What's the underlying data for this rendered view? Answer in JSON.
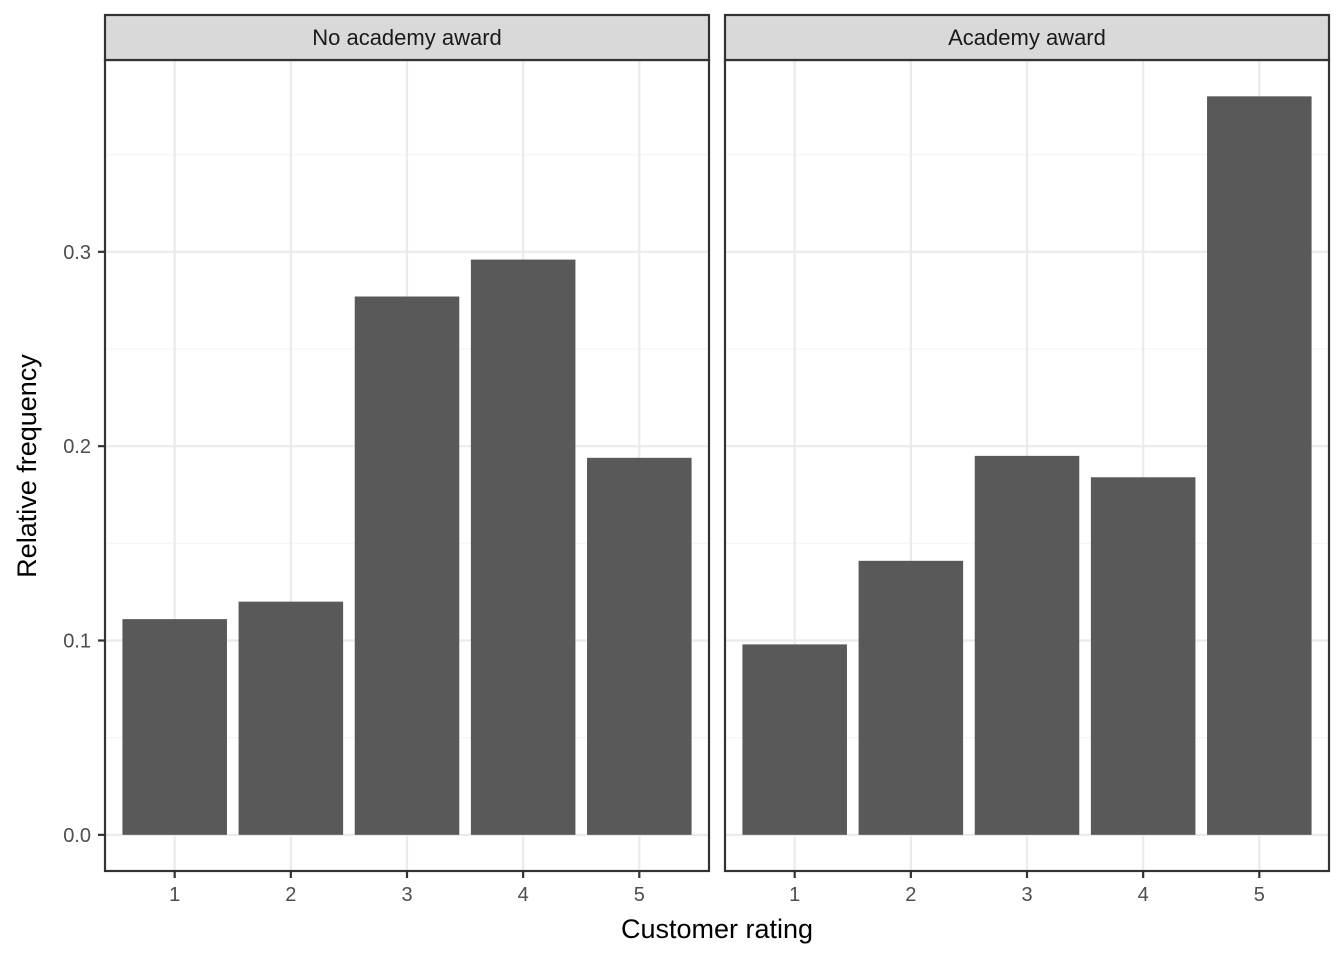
{
  "chart_data": {
    "type": "bar",
    "xlabel": "Customer rating",
    "ylabel": "Relative frequency",
    "categories": [
      "1",
      "2",
      "3",
      "4",
      "5"
    ],
    "ylim": [
      -0.0186,
      0.3987
    ],
    "yticks": [
      0.0,
      0.1,
      0.2,
      0.3
    ],
    "ytick_labels": [
      "0.0",
      "0.1",
      "0.2",
      "0.3"
    ],
    "grid": true,
    "facets": [
      {
        "label": "No academy award",
        "values": [
          0.111,
          0.12,
          0.277,
          0.296,
          0.194
        ]
      },
      {
        "label": "Academy award",
        "values": [
          0.098,
          0.141,
          0.195,
          0.184,
          0.38
        ]
      }
    ],
    "colors": {
      "bar": "#595959",
      "panel_border": "#333333",
      "strip_fill": "#d9d9d9",
      "grid_major": "#ebebeb",
      "grid_minor": "#f5f5f5"
    }
  }
}
